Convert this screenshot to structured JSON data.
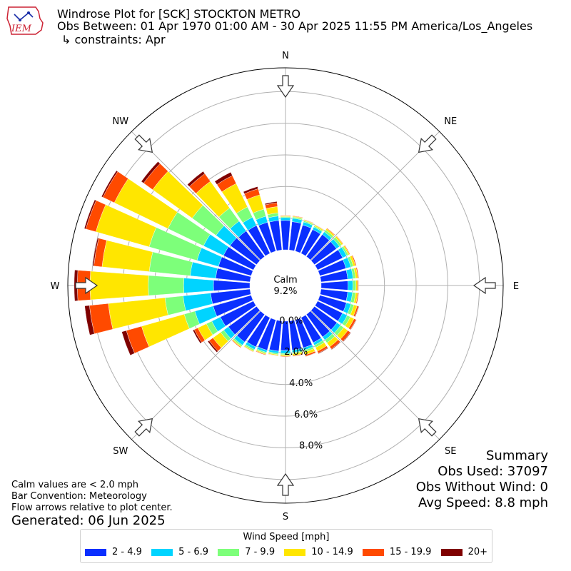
{
  "header": {
    "title": "Windrose Plot for [SCK] STOCKTON METRO",
    "obs_between": "Obs Between: 01 Apr 1970 01:00 AM - 30 Apr 2025 11:55 PM America/Los_Angeles",
    "constraints": "↳ constraints: Apr",
    "logo_text": "IEM"
  },
  "summary": {
    "title": "Summary",
    "obs_used": "Obs Used: 37097",
    "obs_without_wind": "Obs Without Wind: 0",
    "avg_speed": "Avg Speed: 8.8 mph"
  },
  "notes": {
    "calm_note": "Calm values are < 2.0 mph",
    "bar_convention": "Bar Convention: Meteorology",
    "flow_arrows": "Flow arrows relative to plot center."
  },
  "generated": "Generated: 06 Jun 2025",
  "chart_data": {
    "type": "windrose",
    "calm_label": "Calm",
    "calm_value": "9.2%",
    "radial_ticks": [
      "0.0%",
      "2.0%",
      "4.0%",
      "6.0%",
      "8.0%"
    ],
    "rmax": 11.5,
    "cardinal_labels": [
      "N",
      "NE",
      "E",
      "SE",
      "S",
      "SW",
      "W",
      "NW"
    ],
    "legend_title": "Wind Speed [mph]",
    "bins": [
      {
        "label": "2 - 4.9",
        "color": "#0a2fff"
      },
      {
        "label": "5 - 6.9",
        "color": "#00d4ff"
      },
      {
        "label": "7 - 9.9",
        "color": "#7dff7a"
      },
      {
        "label": "10 - 14.9",
        "color": "#ffe600"
      },
      {
        "label": "15 - 19.9",
        "color": "#ff4a00"
      },
      {
        "label": "20+",
        "color": "#7f0000"
      }
    ],
    "directions_deg": [
      0,
      10,
      20,
      30,
      40,
      50,
      60,
      70,
      80,
      90,
      100,
      110,
      120,
      130,
      140,
      150,
      160,
      170,
      180,
      190,
      200,
      210,
      220,
      230,
      240,
      250,
      260,
      270,
      280,
      290,
      300,
      310,
      320,
      330,
      340,
      350
    ],
    "cumulative": [
      [
        1.86,
        2.04,
        2.1,
        2.15,
        2.18,
        2.18
      ],
      [
        1.8,
        2.02,
        2.1,
        2.15,
        2.18,
        2.18
      ],
      [
        1.72,
        1.92,
        2.0,
        2.05,
        2.08,
        2.08
      ],
      [
        1.68,
        1.85,
        1.93,
        2.0,
        2.02,
        2.02
      ],
      [
        1.72,
        1.93,
        2.08,
        2.18,
        2.22,
        2.22
      ],
      [
        1.72,
        1.96,
        2.12,
        2.22,
        2.25,
        2.25
      ],
      [
        1.76,
        2.04,
        2.16,
        2.24,
        2.28,
        2.28
      ],
      [
        1.72,
        2.04,
        2.2,
        2.34,
        2.4,
        2.4
      ],
      [
        1.7,
        2.04,
        2.2,
        2.34,
        2.4,
        2.4
      ],
      [
        1.7,
        2.0,
        2.2,
        2.3,
        2.36,
        2.36
      ],
      [
        1.7,
        2.0,
        2.2,
        2.34,
        2.4,
        2.4
      ],
      [
        1.75,
        2.04,
        2.24,
        2.45,
        2.55,
        2.58
      ],
      [
        1.75,
        2.08,
        2.3,
        2.56,
        2.7,
        2.73
      ],
      [
        1.76,
        2.04,
        2.28,
        2.6,
        2.8,
        2.84
      ],
      [
        1.76,
        2.0,
        2.22,
        2.52,
        2.7,
        2.74
      ],
      [
        1.76,
        1.94,
        2.1,
        2.36,
        2.5,
        2.54
      ],
      [
        1.84,
        2.0,
        2.12,
        2.3,
        2.4,
        2.42
      ],
      [
        1.85,
        2.0,
        2.08,
        2.2,
        2.25,
        2.26
      ],
      [
        1.86,
        2.04,
        2.12,
        2.2,
        2.24,
        2.24
      ],
      [
        1.92,
        2.06,
        2.14,
        2.2,
        2.22,
        2.22
      ],
      [
        2.0,
        2.14,
        2.22,
        2.28,
        2.32,
        2.32
      ],
      [
        2.06,
        2.24,
        2.34,
        2.4,
        2.42,
        2.42
      ],
      [
        2.15,
        2.4,
        2.5,
        2.56,
        2.6,
        2.6
      ],
      [
        2.2,
        2.56,
        2.8,
        3.4,
        3.7,
        3.8
      ],
      [
        2.32,
        2.92,
        3.3,
        3.9,
        4.15,
        4.25
      ],
      [
        2.5,
        3.7,
        4.4,
        7.2,
        8.2,
        8.5
      ],
      [
        2.5,
        4.25,
        5.4,
        9.0,
        10.2,
        10.5
      ],
      [
        2.3,
        4.18,
        6.42,
        10.1,
        10.9,
        11.1
      ],
      [
        2.18,
        3.8,
        6.4,
        9.4,
        9.92,
        10.0
      ],
      [
        2.15,
        3.56,
        6.7,
        10.2,
        10.86,
        10.96
      ],
      [
        2.1,
        3.5,
        6.0,
        9.76,
        10.56,
        10.66
      ],
      [
        2.06,
        3.16,
        5.02,
        8.1,
        8.8,
        8.98
      ],
      [
        2.0,
        2.76,
        3.78,
        5.86,
        6.46,
        6.64
      ],
      [
        1.96,
        2.54,
        3.26,
        4.9,
        5.46,
        5.7
      ],
      [
        1.9,
        2.3,
        2.76,
        3.7,
        4.1,
        4.24
      ],
      [
        1.88,
        2.16,
        2.36,
        2.76,
        3.0,
        3.08
      ]
    ]
  }
}
